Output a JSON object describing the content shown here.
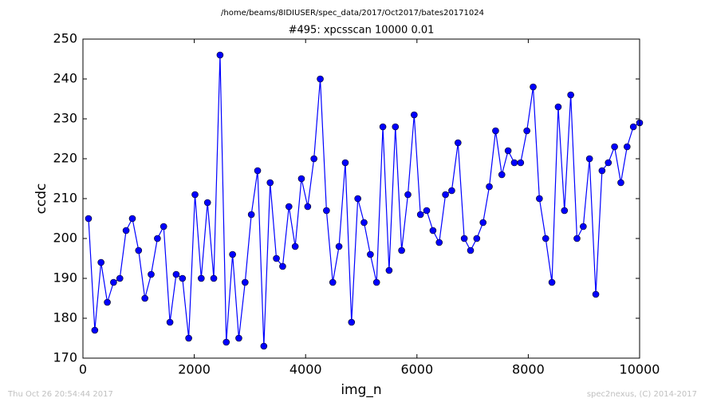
{
  "chart_data": {
    "type": "line",
    "suptitle": "/home/beams/8IDIUSER/spec_data/2017/Oct2017/bates20171024",
    "title": "#495: xpcsscan 10000 0.01",
    "xlabel": "img_n",
    "ylabel": "ccdc",
    "footer_left": "Thu Oct 26 20:54:44 2017",
    "footer_right": "spec2nexus, (C) 2014-2017",
    "x": [
      100,
      213,
      325,
      438,
      550,
      663,
      775,
      888,
      1000,
      1113,
      1225,
      1338,
      1450,
      1563,
      1675,
      1788,
      1900,
      2013,
      2125,
      2238,
      2350,
      2463,
      2575,
      2688,
      2800,
      2913,
      3025,
      3138,
      3250,
      3363,
      3475,
      3588,
      3700,
      3813,
      3925,
      4038,
      4150,
      4263,
      4375,
      4488,
      4600,
      4713,
      4825,
      4938,
      5050,
      5163,
      5275,
      5388,
      5500,
      5613,
      5725,
      5838,
      5950,
      6063,
      6175,
      6288,
      6400,
      6513,
      6625,
      6738,
      6850,
      6963,
      7075,
      7188,
      7300,
      7413,
      7525,
      7638,
      7750,
      7863,
      7975,
      8088,
      8200,
      8313,
      8425,
      8538,
      8650,
      8763,
      8875,
      8988,
      9100,
      9213,
      9325,
      9438,
      9550,
      9663,
      9775,
      9888,
      10000
    ],
    "series": [
      {
        "color": "#0000ff",
        "values": [
          205,
          177,
          194,
          184,
          189,
          190,
          202,
          205,
          197,
          185,
          191,
          200,
          203,
          179,
          191,
          190,
          175,
          211,
          190,
          209,
          190,
          246,
          174,
          196,
          175,
          189,
          206,
          217,
          173,
          214,
          195,
          193,
          208,
          198,
          215,
          208,
          220,
          240,
          207,
          189,
          198,
          219,
          179,
          210,
          204,
          196,
          189,
          228,
          192,
          228,
          197,
          211,
          231,
          206,
          207,
          202,
          199,
          211,
          212,
          224,
          200,
          197,
          200,
          204,
          213,
          227,
          216,
          222,
          219,
          219,
          227,
          238,
          210,
          200,
          189,
          233,
          207,
          236,
          200,
          203,
          220,
          186,
          217,
          219,
          223,
          214,
          223,
          228,
          229
        ]
      }
    ],
    "xlim": [
      0,
      10000
    ],
    "xticks": [
      0,
      2000,
      4000,
      6000,
      8000,
      10000
    ],
    "ylim": [
      170,
      250
    ],
    "yticks": [
      170,
      180,
      190,
      200,
      210,
      220,
      230,
      240,
      250
    ]
  }
}
